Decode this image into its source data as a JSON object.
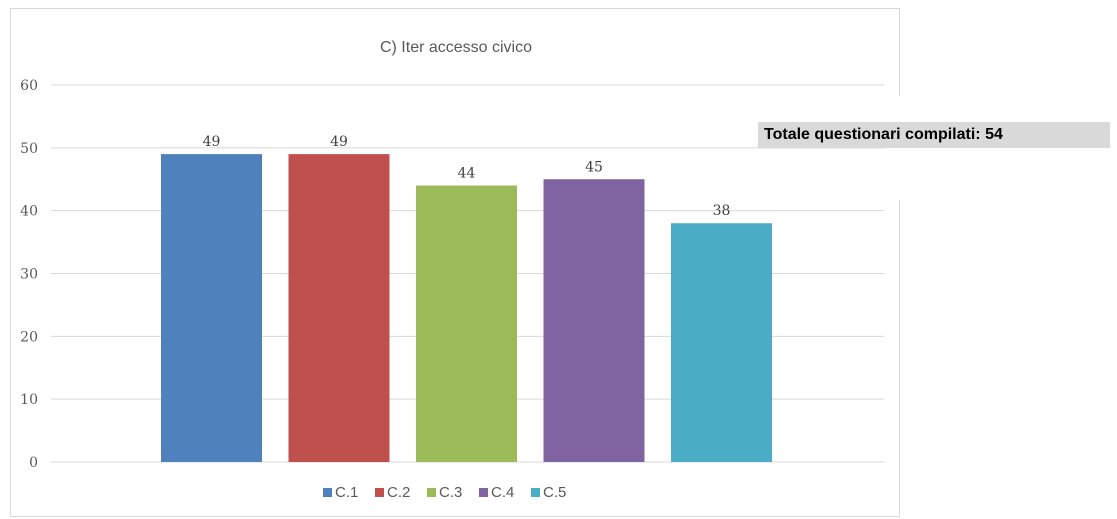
{
  "chart_data": {
    "type": "bar",
    "title": "C) Iter accesso civico",
    "xlabel": "",
    "ylabel": "",
    "categories": [
      "C.1",
      "C.2",
      "C.3",
      "C.4",
      "C.5"
    ],
    "values": [
      49,
      49,
      44,
      45,
      38
    ],
    "colors": [
      "#4f81bd",
      "#c0504d",
      "#9bbb59",
      "#8064a2",
      "#4bacc6"
    ],
    "ylim": [
      0,
      60
    ],
    "yticks": [
      0,
      10,
      20,
      30,
      40,
      50,
      60
    ],
    "grid": true,
    "data_labels": true,
    "legend_position": "bottom",
    "legend": [
      "C.1",
      "C.2",
      "C.3",
      "C.4",
      "C.5"
    ]
  },
  "summary": {
    "text": "Totale questionari compilati: 54"
  }
}
